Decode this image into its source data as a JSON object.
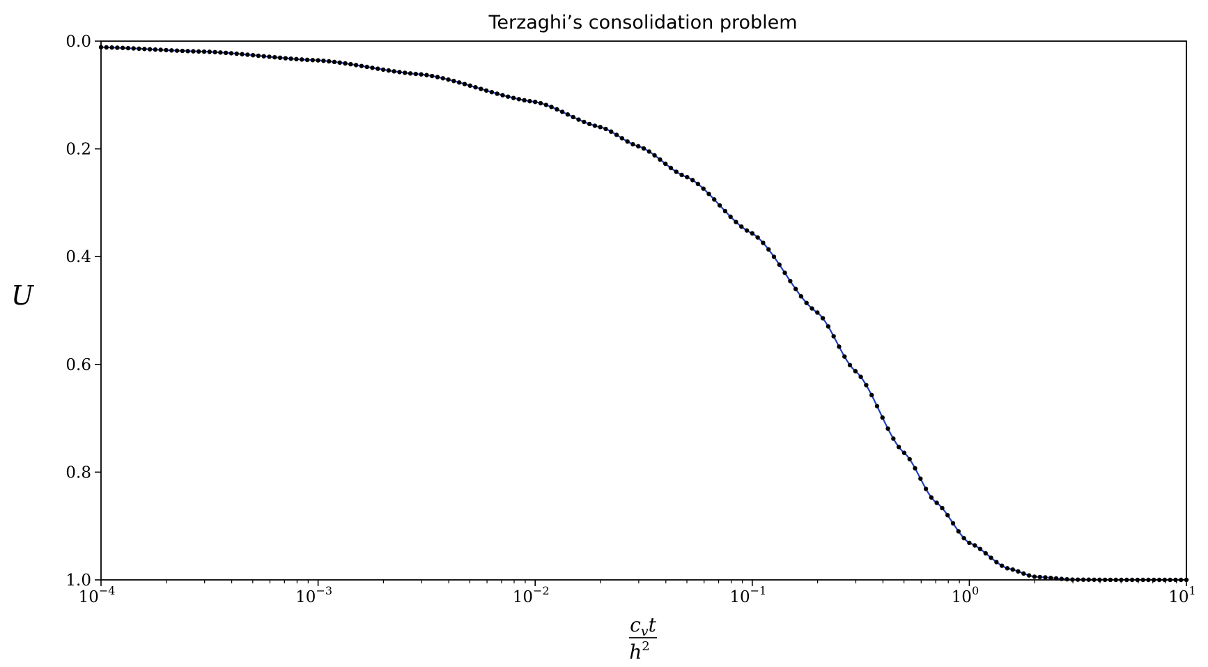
{
  "chart_data": {
    "type": "line",
    "title": "Terzaghi’s consolidation problem",
    "xlabel": {
      "numerator": "c",
      "numerator_sub": "v",
      "numerator_tail": "t",
      "denominator": "h",
      "denominator_sup": "2"
    },
    "ylabel": "U",
    "x_scale": "log",
    "xlim": [
      0.0001,
      10
    ],
    "ylim": [
      0.0,
      1.0
    ],
    "y_inverted": true,
    "grid": false,
    "x_tick_labels": [
      {
        "base": "10",
        "exp": "−4"
      },
      {
        "base": "10",
        "exp": "−3"
      },
      {
        "base": "10",
        "exp": "−2"
      },
      {
        "base": "10",
        "exp": "−1"
      },
      {
        "base": "10",
        "exp": "0"
      },
      {
        "base": "10",
        "exp": "1"
      }
    ],
    "y_tick_labels": [
      "0.0",
      "0.2",
      "0.4",
      "0.6",
      "0.8",
      "1.0"
    ],
    "series": [
      {
        "style": "solid line",
        "color": "#1f3fbf",
        "x": [
          0.0001,
          0.0003,
          0.001,
          0.003,
          0.01,
          0.02,
          0.03,
          0.05,
          0.1,
          0.2,
          0.3,
          0.5,
          0.7,
          1.0,
          1.5,
          2.0,
          3.0,
          5.0,
          10.0
        ],
        "y": [
          0.0113,
          0.0195,
          0.0357,
          0.0618,
          0.1128,
          0.1596,
          0.1954,
          0.2523,
          0.3568,
          0.5041,
          0.6132,
          0.7639,
          0.8557,
          0.9313,
          0.9786,
          0.9942,
          0.9995,
          1.0,
          1.0
        ]
      },
      {
        "style": "markers",
        "color": "#000000",
        "x": [
          0.0001,
          0.0003,
          0.001,
          0.003,
          0.01,
          0.02,
          0.03,
          0.05,
          0.1,
          0.2,
          0.3,
          0.5,
          0.7,
          1.0,
          1.5,
          2.0,
          3.0,
          5.0,
          10.0
        ],
        "y": [
          0.0113,
          0.0195,
          0.0357,
          0.0618,
          0.1128,
          0.1596,
          0.1954,
          0.2523,
          0.3568,
          0.5041,
          0.6132,
          0.7639,
          0.8557,
          0.9313,
          0.9786,
          0.9942,
          0.9995,
          1.0,
          1.0
        ]
      }
    ]
  }
}
